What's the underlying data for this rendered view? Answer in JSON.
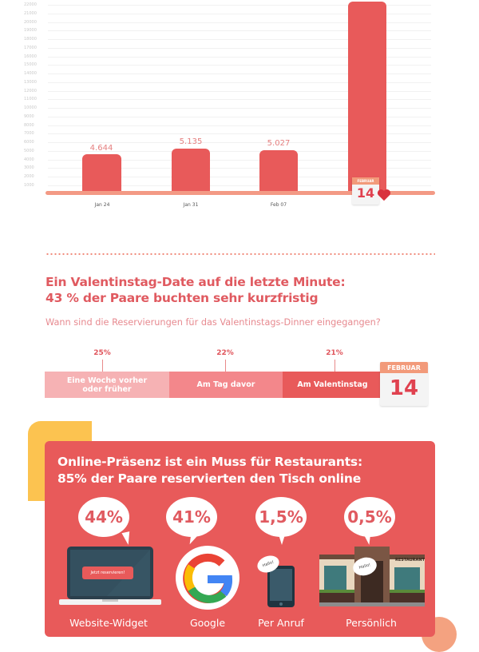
{
  "chart_data": [
    {
      "type": "bar",
      "title": "",
      "xlabel": "",
      "ylabel": "",
      "categories": [
        "Jan 24",
        "Jan 31",
        "Feb 07",
        "Feb 14"
      ],
      "values": [
        4644,
        5135,
        5027,
        22000
      ],
      "value_labels": [
        "4.644",
        "5.135",
        "5.027",
        ""
      ],
      "ylim": [
        0,
        22000
      ],
      "yticks": [
        1000,
        2000,
        3000,
        4000,
        5000,
        6000,
        7000,
        8000,
        9000,
        10000,
        11000,
        12000,
        13000,
        14000,
        15000,
        16000,
        17000,
        18000,
        19000,
        20000,
        21000,
        22000
      ],
      "grid": true,
      "annotation": "14 Februar calendar icon under last bar",
      "colors": {
        "bar": "#e85a5a",
        "baseline": "#f39a85"
      }
    },
    {
      "type": "bar",
      "orientation": "horizontal-stacked",
      "title": "Ein Valentinstag-Date auf die letzte Minute: 43 % der Paare buchten sehr kurzfristig",
      "subtitle": "Wann sind die Reservierungen für das Valentinstags-Dinner eingegangen?",
      "categories": [
        "Eine Woche vorher oder früher",
        "Am Tag davor",
        "Am Valentinstag"
      ],
      "values": [
        25,
        22,
        21
      ],
      "unit": "%"
    },
    {
      "type": "bar",
      "title": "Online-Präsenz ist ein Muss für Restaurants: 85% der Paare reservierten den Tisch online",
      "categories": [
        "Website-Widget",
        "Google",
        "Per Anruf",
        "Persönlich"
      ],
      "values": [
        44,
        41,
        1.5,
        0.5
      ],
      "unit": "%"
    }
  ],
  "bar_chart": {
    "yticks": [
      "22000",
      "21000",
      "20000",
      "19000",
      "18000",
      "17000",
      "16000",
      "15000",
      "14000",
      "13000",
      "12000",
      "11000",
      "10000",
      "9000",
      "8000",
      "7000",
      "6000",
      "5000",
      "4000",
      "3000",
      "2000",
      "1000"
    ],
    "bars": [
      {
        "category": "Jan 24",
        "label": "4.644"
      },
      {
        "category": "Jan 31",
        "label": "5.135"
      },
      {
        "category": "Feb 07",
        "label": "5.027"
      },
      {
        "category": "Feb 14",
        "label": ""
      }
    ],
    "calendar": {
      "month": "FEBRUAR",
      "day": "14"
    }
  },
  "timing": {
    "title_line1": "Ein Valentinstag-Date auf die letzte Minute:",
    "title_line2": "43 % der Paare buchten sehr kurzfristig",
    "subtitle": "Wann sind die Reservierungen für das Valentinstags-Dinner eingegangen?",
    "segments": [
      {
        "pct": "25%",
        "label": "Eine Woche vorher oder früher",
        "color": "#f6b2b4"
      },
      {
        "pct": "22%",
        "label": "Am Tag davor",
        "color": "#f3878b"
      },
      {
        "pct": "21%",
        "label": "Am Valentinstag",
        "color": "#e85a5a"
      }
    ],
    "calendar": {
      "month": "FEBRUAR",
      "day": "14"
    }
  },
  "online": {
    "title_line1": "Online-Präsenz ist ein Muss für Restaurants:",
    "title_line2": "85% der Paare reservierten den Tisch online",
    "channels": [
      {
        "pct": "44%",
        "label": "Website-Widget",
        "button": "Jetzt reservieren!"
      },
      {
        "pct": "41%",
        "label": "Google"
      },
      {
        "pct": "1,5%",
        "label": "Per Anruf",
        "speech": "Hallo!"
      },
      {
        "pct": "0,5%",
        "label": "Persönlich",
        "speech": "Hallo!",
        "sign": "RESTAURANT"
      }
    ],
    "colors": {
      "card": "#e85a5a",
      "accent_yellow": "#fcc350",
      "accent_peach": "#f4a280"
    }
  }
}
